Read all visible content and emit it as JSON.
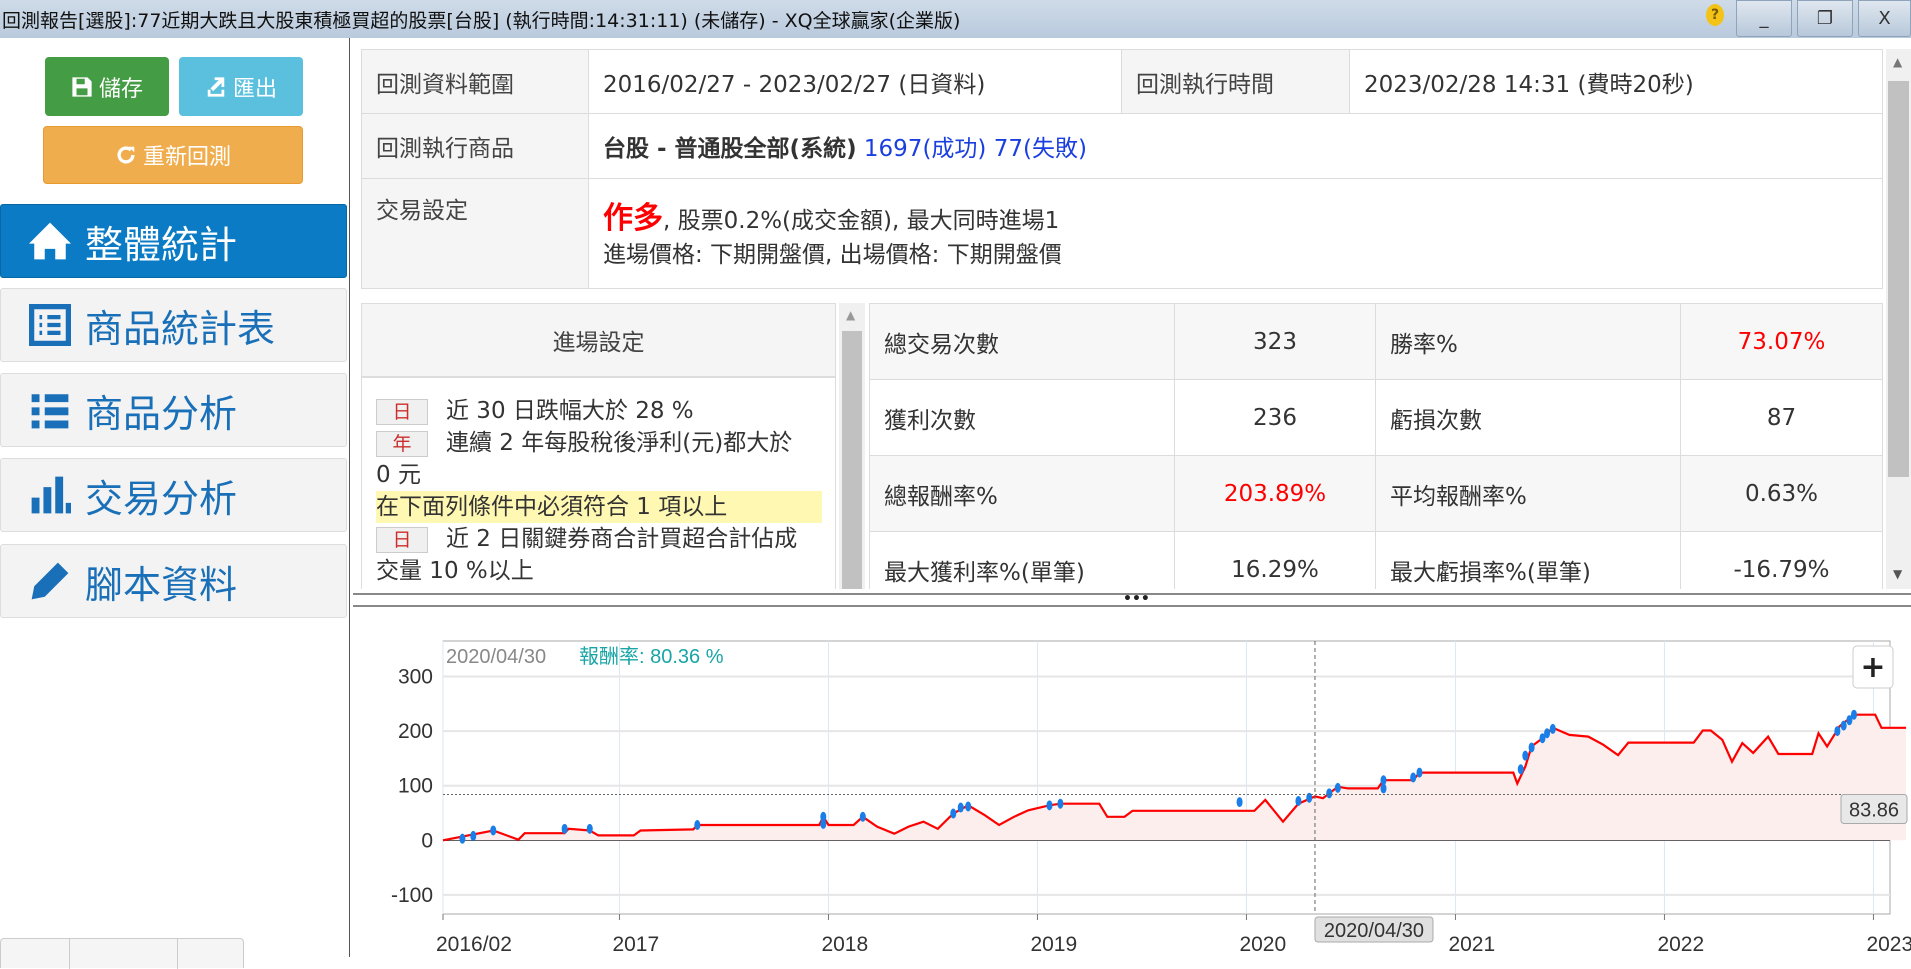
{
  "window": {
    "title": "回測報告[選股]:77近期大跌且大股東積極買超的股票[台股] (執行時間:14:31:11) (未儲存) - XQ全球贏家(企業版)",
    "help_icon": "?",
    "minimize": "_",
    "restore": "❐",
    "close": "X"
  },
  "toolbar": {
    "save_label": "儲存",
    "export_label": "匯出",
    "rerun_label": "重新回測",
    "save_color": "#449d44",
    "export_color": "#5bc0de",
    "rerun_color": "#f0ad4e"
  },
  "sidebar": {
    "items": [
      {
        "label": "整體統計",
        "icon": "home-icon",
        "active": true
      },
      {
        "label": "商品統計表",
        "icon": "table-list-icon",
        "active": false
      },
      {
        "label": "商品分析",
        "icon": "bullet-list-icon",
        "active": false
      },
      {
        "label": "交易分析",
        "icon": "bar-chart-icon",
        "active": false
      },
      {
        "label": "腳本資料",
        "icon": "pencil-icon",
        "active": false
      }
    ]
  },
  "summary": {
    "range_label": "回測資料範圍",
    "range_value": "2016/02/27 - 2023/02/27 (日資料)",
    "exec_time_label": "回測執行時間",
    "exec_time_value": "2023/02/28 14:31 (費時20秒)",
    "product_label": "回測執行商品",
    "product_value": "台股 - 普通股全部(系統)",
    "product_success": "1697(成功)",
    "product_fail": "77(失敗)",
    "trade_label": "交易設定",
    "trade_direction": "作多",
    "trade_line1": ", 股票0.2%(成交金額), 最大同時進場1",
    "trade_line2": "進場價格: 下期開盤價, 出場價格: 下期開盤價"
  },
  "entry": {
    "header": "進場設定",
    "conditions": [
      {
        "badge": "日",
        "text": "近 30 日跌幅大於 28 %"
      },
      {
        "badge": "年",
        "text": "連續 2 年每股稅後淨利(元)都大於",
        "cont": "0 元"
      }
    ],
    "group_note": "在下面列條件中必須符合 1 項以上",
    "group_conditions": [
      {
        "badge": "日",
        "text": "近 2 日關鍵券商合計買超合計佔成",
        "cont": "交量 10 %以上"
      }
    ]
  },
  "stats": {
    "rows": [
      [
        {
          "label": "總交易次數",
          "value": "323"
        },
        {
          "label": "勝率%",
          "value": "73.07%",
          "red": true
        }
      ],
      [
        {
          "label": "獲利次數",
          "value": "236"
        },
        {
          "label": "虧損次數",
          "value": "87"
        }
      ],
      [
        {
          "label": "總報酬率%",
          "value": "203.89%",
          "red": true
        },
        {
          "label": "平均報酬率%",
          "value": "0.63%"
        }
      ],
      [
        {
          "label": "最大獲利率%(單筆)",
          "value": "16.29%"
        },
        {
          "label": "最大虧損率%(單筆)",
          "value": "-16.79%"
        }
      ]
    ]
  },
  "splitter": "•••",
  "chart_data": {
    "type": "line",
    "tooltip": {
      "date": "2020/04/30",
      "label": "報酬率:",
      "value": "80.36",
      "unit": "%"
    },
    "crosshair": {
      "x_label": "2020/04/30",
      "y_label": "83.86",
      "x": "2020-04-30",
      "y": 83.86
    },
    "ylim": [
      -135,
      365
    ],
    "yticks": [
      300,
      200,
      100,
      0,
      -100
    ],
    "xticks": [
      {
        "label": "2016/02",
        "date": "2016-02-27"
      },
      {
        "label": "2017",
        "date": "2017-01-01"
      },
      {
        "label": "2018",
        "date": "2018-01-01"
      },
      {
        "label": "2019",
        "date": "2019-01-01"
      },
      {
        "label": "2020",
        "date": "2020-01-01"
      },
      {
        "label": "2021",
        "date": "2021-01-01"
      },
      {
        "label": "2022",
        "date": "2022-01-01"
      },
      {
        "label": "2023",
        "date": "2023-01-01"
      }
    ],
    "xlim": [
      "2016-02-27",
      "2023-02-27"
    ],
    "grid": true,
    "line_color": "#ff0000",
    "fill_color": "#fbeeec",
    "marker_color": "#1a7ee8",
    "zoom_button": "+",
    "series": [
      {
        "points": [
          [
            "2016-02-27",
            0
          ],
          [
            "2016-05-25",
            18
          ],
          [
            "2016-07-08",
            1
          ],
          [
            "2016-07-19",
            13
          ],
          [
            "2016-09-27",
            13
          ],
          [
            "2016-10-04",
            21
          ],
          [
            "2016-11-10",
            18
          ],
          [
            "2016-11-25",
            9
          ],
          [
            "2017-01-26",
            9
          ],
          [
            "2017-02-07",
            18
          ],
          [
            "2017-05-10",
            20
          ],
          [
            "2017-05-17",
            28
          ],
          [
            "2017-12-16",
            28
          ],
          [
            "2017-12-23",
            43
          ],
          [
            "2018-01-01",
            28
          ],
          [
            "2018-02-14",
            28
          ],
          [
            "2018-03-02",
            43
          ],
          [
            "2018-03-27",
            25
          ],
          [
            "2018-04-26",
            12
          ],
          [
            "2018-05-21",
            25
          ],
          [
            "2018-06-16",
            34
          ],
          [
            "2018-07-11",
            21
          ],
          [
            "2018-08-07",
            49
          ],
          [
            "2018-09-02",
            64
          ],
          [
            "2018-10-01",
            46
          ],
          [
            "2018-10-26",
            28
          ],
          [
            "2018-11-21",
            43
          ],
          [
            "2018-12-16",
            55
          ],
          [
            "2019-01-22",
            64
          ],
          [
            "2019-02-10",
            67
          ],
          [
            "2019-04-19",
            67
          ],
          [
            "2019-05-03",
            43
          ],
          [
            "2019-06-02",
            43
          ],
          [
            "2019-06-16",
            54
          ],
          [
            "2020-01-15",
            54
          ],
          [
            "2020-02-03",
            74
          ],
          [
            "2020-03-05",
            34
          ],
          [
            "2020-04-01",
            67
          ],
          [
            "2020-04-30",
            80.36
          ],
          [
            "2020-05-14",
            77
          ],
          [
            "2020-06-09",
            98
          ],
          [
            "2020-06-27",
            95
          ],
          [
            "2020-08-18",
            95
          ],
          [
            "2020-08-28",
            110
          ],
          [
            "2020-10-19",
            110
          ],
          [
            "2020-10-30",
            124
          ],
          [
            "2021-04-12",
            124
          ],
          [
            "2021-04-19",
            104
          ],
          [
            "2021-05-03",
            135
          ],
          [
            "2021-05-14",
            172
          ],
          [
            "2021-06-02",
            187
          ],
          [
            "2021-06-20",
            206
          ],
          [
            "2021-07-19",
            193
          ],
          [
            "2021-08-21",
            190
          ],
          [
            "2021-09-16",
            175
          ],
          [
            "2021-10-12",
            156
          ],
          [
            "2021-10-30",
            179
          ],
          [
            "2022-02-21",
            179
          ],
          [
            "2022-03-09",
            201
          ],
          [
            "2022-03-23",
            201
          ],
          [
            "2022-04-12",
            184
          ],
          [
            "2022-04-29",
            144
          ],
          [
            "2022-05-17",
            178
          ],
          [
            "2022-06-05",
            160
          ],
          [
            "2022-07-01",
            190
          ],
          [
            "2022-07-19",
            158
          ],
          [
            "2022-09-16",
            158
          ],
          [
            "2022-09-27",
            196
          ],
          [
            "2022-10-12",
            172
          ],
          [
            "2022-11-03",
            209
          ],
          [
            "2022-11-28",
            230
          ],
          [
            "2023-01-04",
            230
          ],
          [
            "2023-01-15",
            206
          ],
          [
            "2023-02-27",
            206
          ]
        ],
        "markers": [
          [
            "2016-04-01",
            3
          ],
          [
            "2016-04-20",
            8
          ],
          [
            "2016-05-25",
            18
          ],
          [
            "2016-09-27",
            21
          ],
          [
            "2016-11-10",
            21
          ],
          [
            "2017-05-17",
            28
          ],
          [
            "2017-12-23",
            43
          ],
          [
            "2017-12-23",
            30
          ],
          [
            "2018-03-02",
            43
          ],
          [
            "2018-08-07",
            49
          ],
          [
            "2018-08-20",
            60
          ],
          [
            "2018-09-02",
            62
          ],
          [
            "2019-01-22",
            64
          ],
          [
            "2019-02-10",
            67
          ],
          [
            "2019-12-20",
            70
          ],
          [
            "2020-04-01",
            72
          ],
          [
            "2020-04-20",
            78
          ],
          [
            "2020-05-25",
            86
          ],
          [
            "2020-06-09",
            96
          ],
          [
            "2020-08-28",
            110
          ],
          [
            "2020-08-28",
            95
          ],
          [
            "2020-10-19",
            115
          ],
          [
            "2020-10-30",
            124
          ],
          [
            "2021-04-25",
            130
          ],
          [
            "2021-05-03",
            155
          ],
          [
            "2021-05-14",
            170
          ],
          [
            "2021-06-02",
            187
          ],
          [
            "2021-06-10",
            196
          ],
          [
            "2021-06-20",
            204
          ],
          [
            "2022-10-30",
            200
          ],
          [
            "2022-11-10",
            210
          ],
          [
            "2022-11-20",
            220
          ],
          [
            "2022-11-28",
            230
          ]
        ]
      }
    ]
  }
}
